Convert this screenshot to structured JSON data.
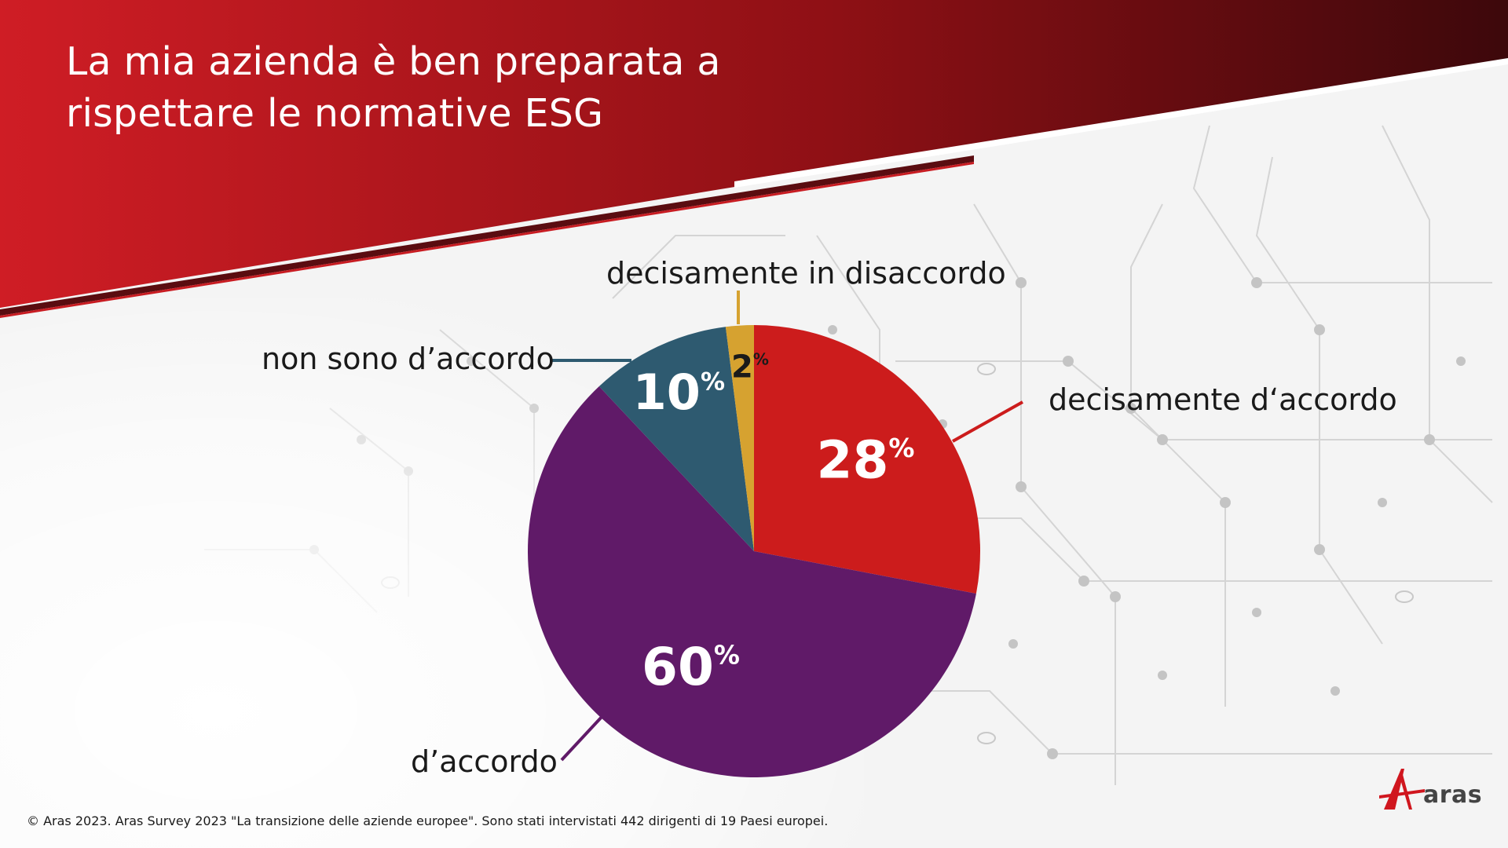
{
  "title_lines": [
    "La mia azienda è ben preparata a",
    "rispettare le normative ESG"
  ],
  "footer": "© Aras 2023. Aras Survey 2023 \"La transizione delle aziende europee\". Sono stati intervistati 442 dirigenti di 19 Paesi europei.",
  "logo_text": "aras",
  "icon": "aras-logo-icon",
  "colors": {
    "header_red": "#cc1c24",
    "header_dark": "#4a0a0e",
    "decisamente_daccordo": "#cc1c1c",
    "daccordo": "#601a68",
    "non_daccordo": "#2e5a70",
    "decisamente_disaccordo": "#d6a230"
  },
  "chart_data": {
    "type": "pie",
    "title": "La mia azienda è ben preparata a rispettare le normative ESG",
    "slices": [
      {
        "label": "decisamente d‘accordo",
        "value": 28,
        "display": "28",
        "unit": "%",
        "color": "#cc1c1c"
      },
      {
        "label": "d’accordo",
        "value": 60,
        "display": "60",
        "unit": "%",
        "color": "#601a68"
      },
      {
        "label": "non sono d’accordo",
        "value": 10,
        "display": "10",
        "unit": "%",
        "color": "#2e5a70"
      },
      {
        "label": "decisamente in disaccordo",
        "value": 2,
        "display": "2",
        "unit": "%",
        "color": "#d6a230"
      }
    ],
    "start": "12 o'clock, clockwise"
  }
}
